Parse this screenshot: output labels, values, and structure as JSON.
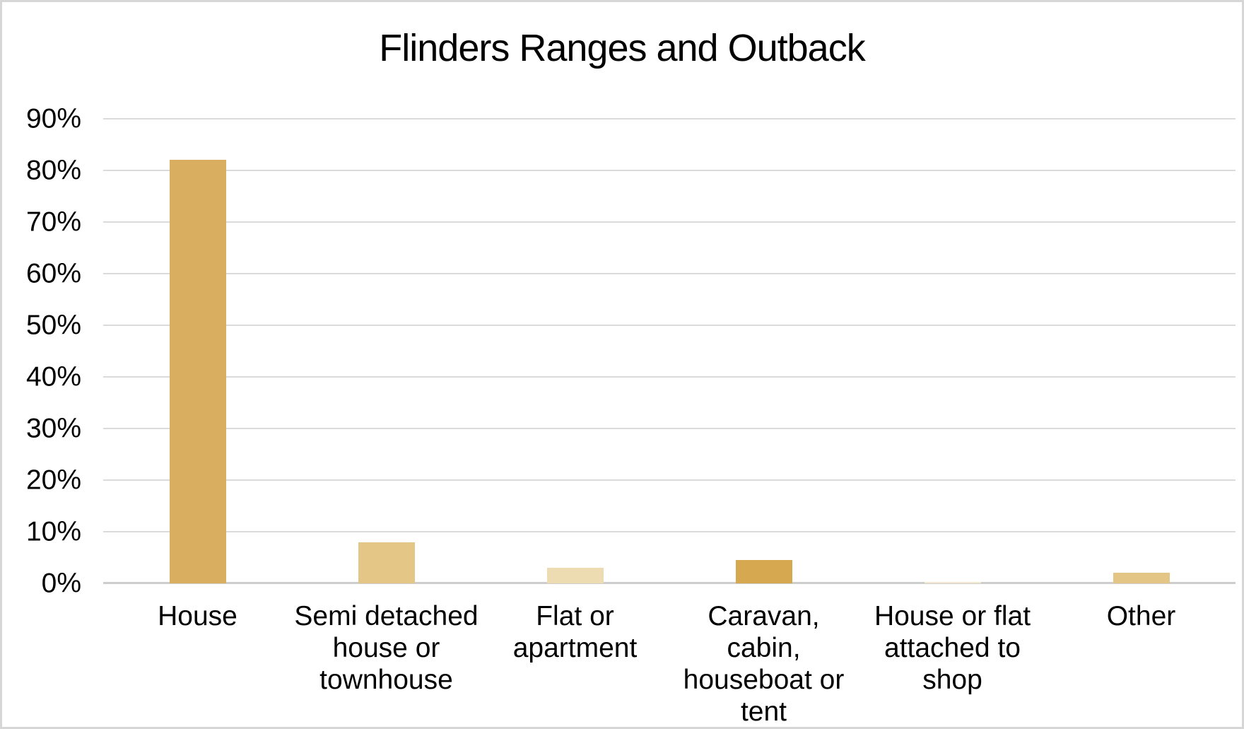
{
  "chart_data": {
    "type": "bar",
    "title": "Flinders Ranges and Outback",
    "categories": [
      "House",
      "Semi detached house or townhouse",
      "Flat or apartment",
      "Caravan, cabin, houseboat or tent",
      "House or flat attached to shop",
      "Other"
    ],
    "category_lines": [
      [
        "House"
      ],
      [
        "Semi detached",
        "house or",
        "townhouse"
      ],
      [
        "Flat or",
        "apartment"
      ],
      [
        "Caravan, cabin,",
        "houseboat or",
        "tent"
      ],
      [
        "House or flat",
        "attached to",
        "shop"
      ],
      [
        "Other"
      ]
    ],
    "values": [
      82,
      8,
      3,
      4.5,
      0.3,
      2
    ],
    "unit": "%",
    "bar_colors": [
      "#D9AE60",
      "#E4C786",
      "#EDDBB1",
      "#D6A850",
      "#F3E8CE",
      "#E3C585"
    ],
    "xlabel": "",
    "ylabel": "",
    "ylim": [
      0,
      90
    ],
    "ytick_step": 10,
    "ytick_labels": [
      "0%",
      "10%",
      "20%",
      "30%",
      "40%",
      "50%",
      "60%",
      "70%",
      "80%",
      "90%"
    ],
    "grid": true,
    "legend": "none",
    "styling": {
      "gridline_color": "#DBDBDB",
      "axis_line_color": "#CDCDCD",
      "frame_border_color": "#D6D6D6",
      "text_color": "#000000",
      "background": "#FFFFFF"
    }
  }
}
